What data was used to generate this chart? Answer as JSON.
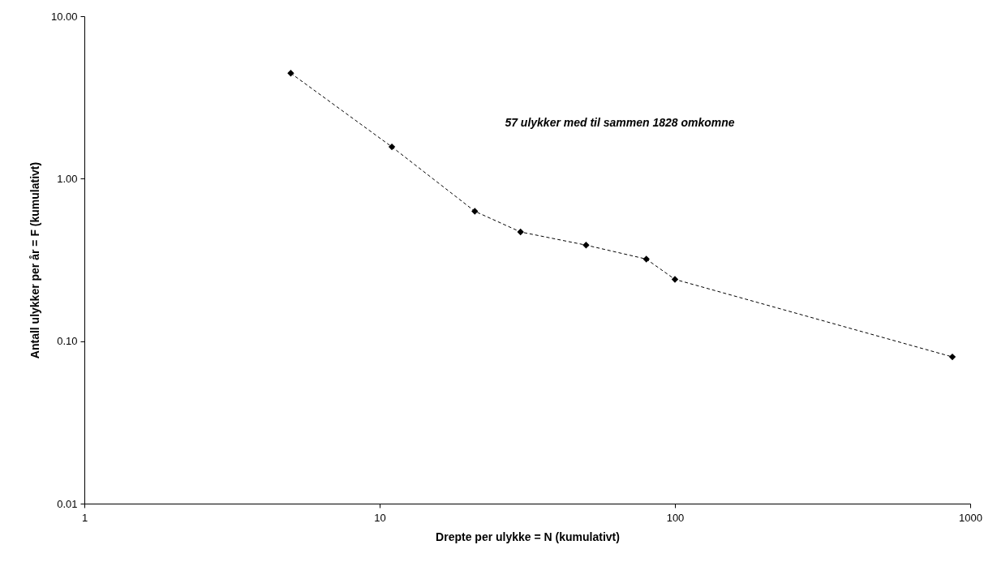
{
  "chart_data": {
    "type": "line",
    "xlabel": "Drepte per ulykke = N (kumulativt)",
    "ylabel": "Antall ulykker per år = F (kumulativt)",
    "log": "xy",
    "xlim": [
      1,
      1000
    ],
    "xticks": [
      1,
      10,
      100,
      1000
    ],
    "ylim": [
      0.01,
      10
    ],
    "yticks": [
      {
        "value": 0.01,
        "label": "0.01"
      },
      {
        "value": 0.1,
        "label": "0.10"
      },
      {
        "value": 1,
        "label": "1.00"
      },
      {
        "value": 10,
        "label": "10.00"
      }
    ],
    "x": [
      5,
      11,
      21,
      30,
      50,
      80,
      100,
      870
    ],
    "series": [
      {
        "color": "#000000",
        "values": [
          4.46,
          1.57,
          0.63,
          0.47,
          0.39,
          0.32,
          0.24,
          0.08
        ]
      }
    ],
    "marker": "diamond",
    "line_style": "dashed",
    "grid": false,
    "annotations": [
      "57 ulykker med til sammen 1828 omkomne"
    ]
  }
}
